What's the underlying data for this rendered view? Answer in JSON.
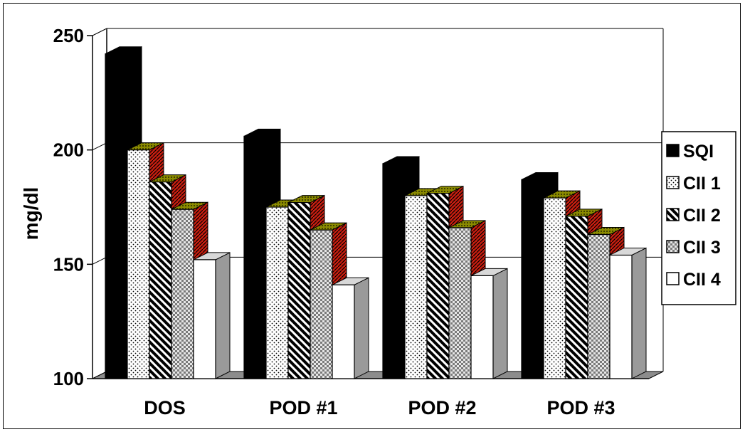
{
  "chart_data": {
    "type": "bar",
    "ylabel": "mg/dl",
    "ylim": [
      100,
      250
    ],
    "yticks": [
      100,
      150,
      200,
      250
    ],
    "categories": [
      "DOS",
      "POD #1",
      "POD #2",
      "POD #3"
    ],
    "series": [
      {
        "name": "SQI",
        "values": [
          242,
          206,
          194,
          187
        ]
      },
      {
        "name": "CII 1",
        "values": [
          200,
          175,
          180,
          179
        ]
      },
      {
        "name": "CII 2",
        "values": [
          186,
          177,
          181,
          171
        ]
      },
      {
        "name": "CII 3",
        "values": [
          174,
          165,
          166,
          163
        ]
      },
      {
        "name": "CII 4",
        "values": [
          152,
          141,
          145,
          154
        ]
      }
    ],
    "grid": true,
    "legend": "right",
    "style": "3d-clustered-bar"
  }
}
